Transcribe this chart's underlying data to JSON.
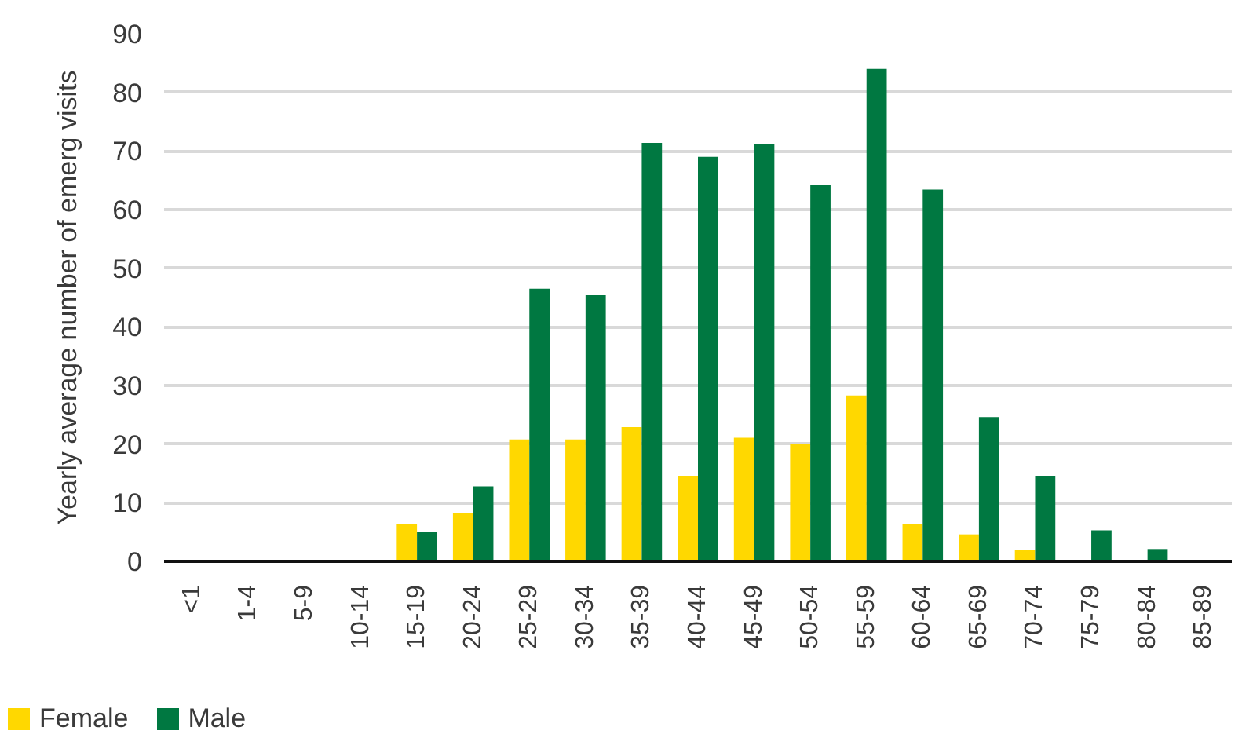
{
  "chart_data": {
    "type": "bar",
    "ylabel": "Yearly average number of emerg visits",
    "categories": [
      "<1",
      "1-4",
      "5-9",
      "10-14",
      "15-19",
      "20-24",
      "25-29",
      "30-34",
      "35-39",
      "40-44",
      "45-49",
      "50-54",
      "55-59",
      "60-64",
      "65-69",
      "70-74",
      "75-79",
      "80-84",
      "85-89"
    ],
    "series": [
      {
        "name": "Female",
        "color": "#ffd800",
        "values": [
          0,
          0,
          0,
          0,
          6.3,
          8.3,
          20.8,
          20.8,
          22.9,
          14.6,
          21.1,
          20.0,
          28.3,
          6.3,
          4.6,
          1.9,
          0,
          0,
          0
        ]
      },
      {
        "name": "Male",
        "color": "#007841",
        "values": [
          0,
          0,
          0,
          0,
          5.0,
          12.8,
          46.5,
          45.4,
          71.4,
          69.0,
          71.1,
          64.2,
          84.0,
          63.4,
          24.6,
          14.6,
          5.3,
          2.1,
          0
        ]
      }
    ],
    "ylim": [
      0,
      90
    ],
    "yticks": [
      0,
      10,
      20,
      30,
      40,
      50,
      60,
      70,
      80,
      90
    ],
    "grid": "y",
    "legend": "bottom"
  }
}
